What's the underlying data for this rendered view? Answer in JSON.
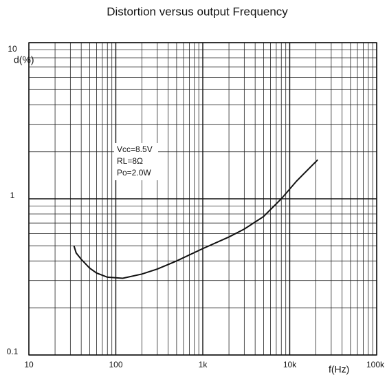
{
  "chart_data": {
    "type": "line",
    "title": "Distortion versus output Frequency",
    "x_label": "f(Hz)",
    "y_label": "d(%)",
    "annotations": [
      "Vcc=8.5V",
      "RL=8Ω",
      "Po=2.0W"
    ],
    "x_log": true,
    "y_log": true,
    "grid": true,
    "minor_grid": true,
    "xlim": [
      10,
      100000
    ],
    "ylim": [
      0.1,
      10
    ],
    "xticks": [
      10,
      100,
      {
        "value": 1000,
        "label": "1k"
      },
      {
        "value": 10000,
        "label": "10k"
      },
      {
        "value": 100000,
        "label": "100k"
      }
    ],
    "yticks": [
      0.1,
      1,
      10
    ],
    "x": [
      33,
      35,
      40,
      50,
      60,
      80,
      120,
      200,
      300,
      500,
      1000,
      2000,
      3000,
      5000,
      8000,
      12000,
      21000
    ],
    "series": [
      {
        "color": "#111111",
        "values": [
          0.5,
          0.45,
          0.41,
          0.36,
          0.335,
          0.315,
          0.31,
          0.33,
          0.355,
          0.4,
          0.48,
          0.57,
          0.64,
          0.77,
          1.0,
          1.3,
          1.78
        ]
      }
    ]
  }
}
